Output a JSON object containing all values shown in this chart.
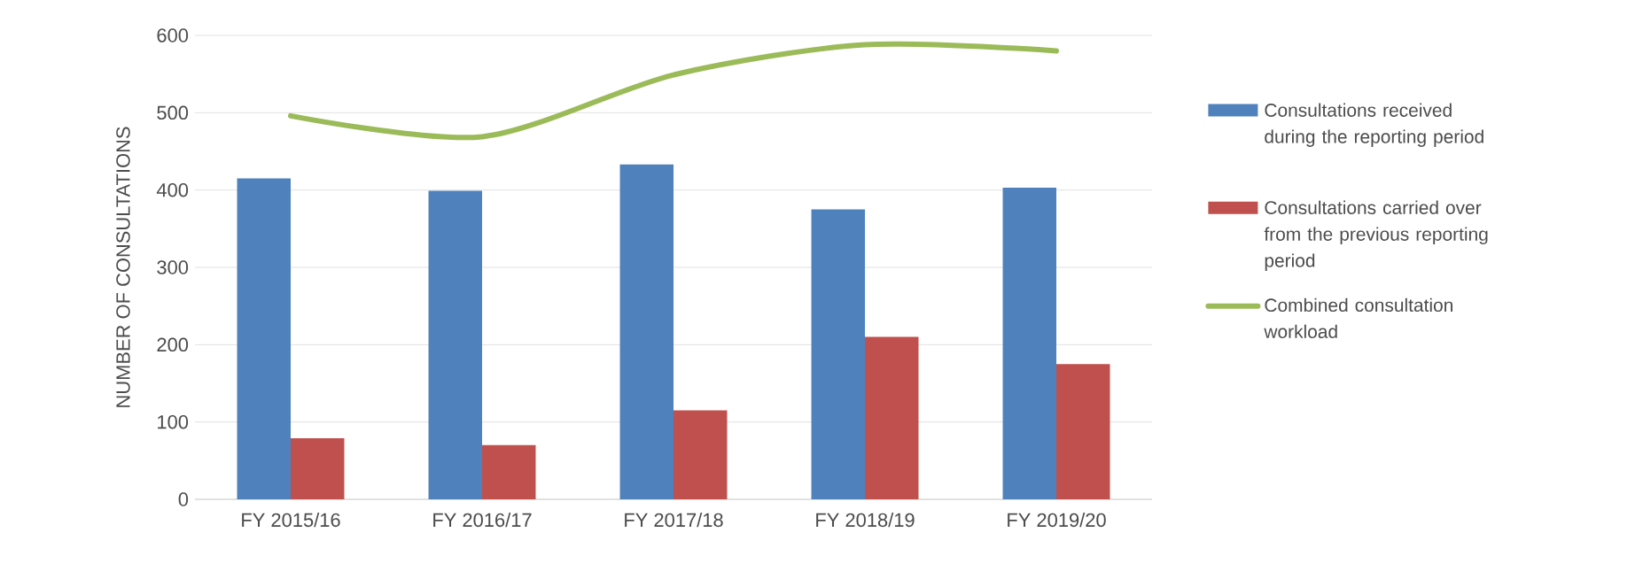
{
  "chart_data": {
    "type": "bar",
    "ylabel": "NUMBER OF CONSULTATIONS",
    "categories": [
      "FY 2015/16",
      "FY 2016/17",
      "FY 2017/18",
      "FY 2018/19",
      "FY 2019/20"
    ],
    "series": [
      {
        "name": "Consultations received during the reporting period",
        "color": "#4f81bd",
        "values": [
          415,
          399,
          433,
          375,
          403
        ]
      },
      {
        "name": "Consultations carried over from the previous reporting period",
        "color": "#c0504d",
        "values": [
          79,
          70,
          115,
          210,
          175
        ]
      },
      {
        "name": "Combined consultation workload",
        "color": "#9bbb59",
        "type": "line",
        "values": [
          496,
          469,
          549,
          588,
          580
        ]
      }
    ],
    "ylim": [
      0,
      600
    ],
    "yticks": [
      0,
      100,
      200,
      300,
      400,
      500,
      600
    ],
    "grid": "y",
    "legend": "right",
    "marker": "none"
  }
}
